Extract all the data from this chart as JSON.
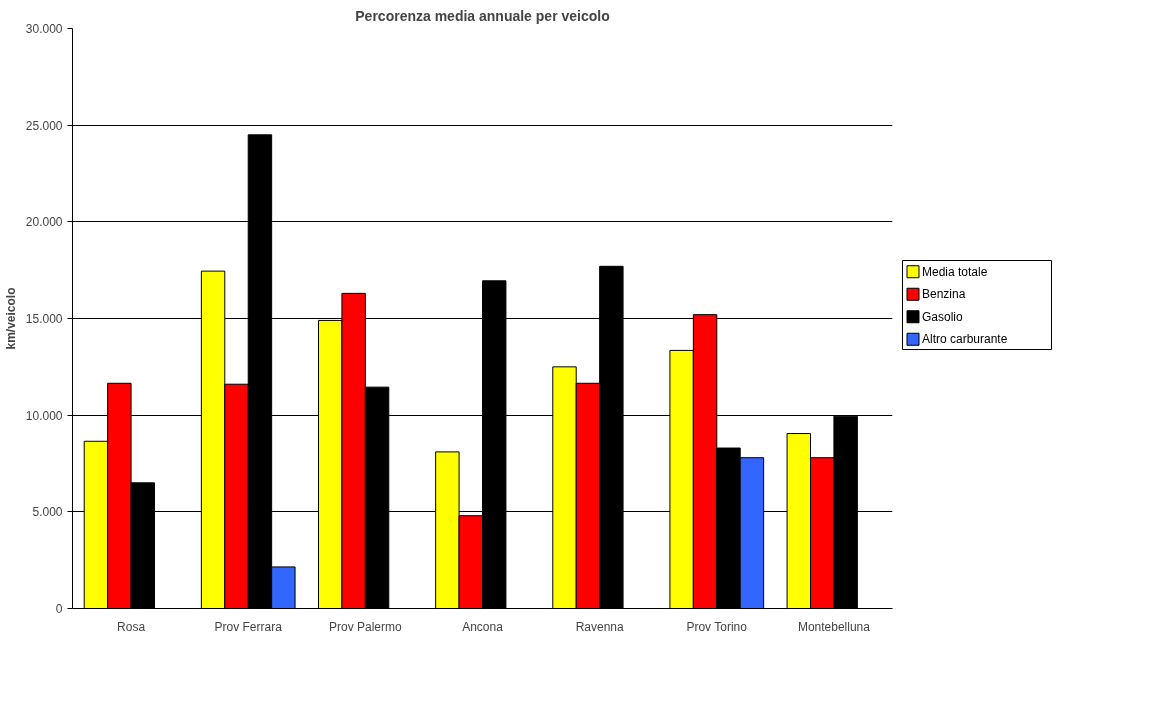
{
  "chart_data": {
    "type": "bar",
    "title": "Percorenza media annuale per veicolo",
    "ylabel": "km/veicolo",
    "categories": [
      "Rosa",
      "Prov Ferrara",
      "Prov Palermo",
      "Ancona",
      "Ravenna",
      "Prov Torino",
      "Montebelluna"
    ],
    "series": [
      {
        "name": "Media totale",
        "color": "#ffff00",
        "values": [
          8650,
          17450,
          14900,
          8100,
          12500,
          13350,
          9050
        ]
      },
      {
        "name": "Benzina",
        "color": "#ff0000",
        "values": [
          11650,
          11600,
          16300,
          4800,
          11650,
          15200,
          7800
        ]
      },
      {
        "name": "Gasolio",
        "color": "#000000",
        "values": [
          6500,
          24500,
          11450,
          16950,
          17700,
          8300,
          9950
        ]
      },
      {
        "name": "Altro carburante",
        "color": "#3366ff",
        "values": [
          null,
          2150,
          null,
          null,
          null,
          7800,
          null
        ]
      }
    ],
    "ylim": [
      0,
      30000
    ],
    "yticks": [
      {
        "value": 0,
        "label": "0"
      },
      {
        "value": 5000,
        "label": "5.000"
      },
      {
        "value": 10000,
        "label": "10.000"
      },
      {
        "value": 15000,
        "label": "15.000"
      },
      {
        "value": 20000,
        "label": "20.000"
      },
      {
        "value": 25000,
        "label": "25.000"
      },
      {
        "value": 30000,
        "label": "30.000"
      }
    ],
    "grid": "y",
    "legend": "right"
  }
}
